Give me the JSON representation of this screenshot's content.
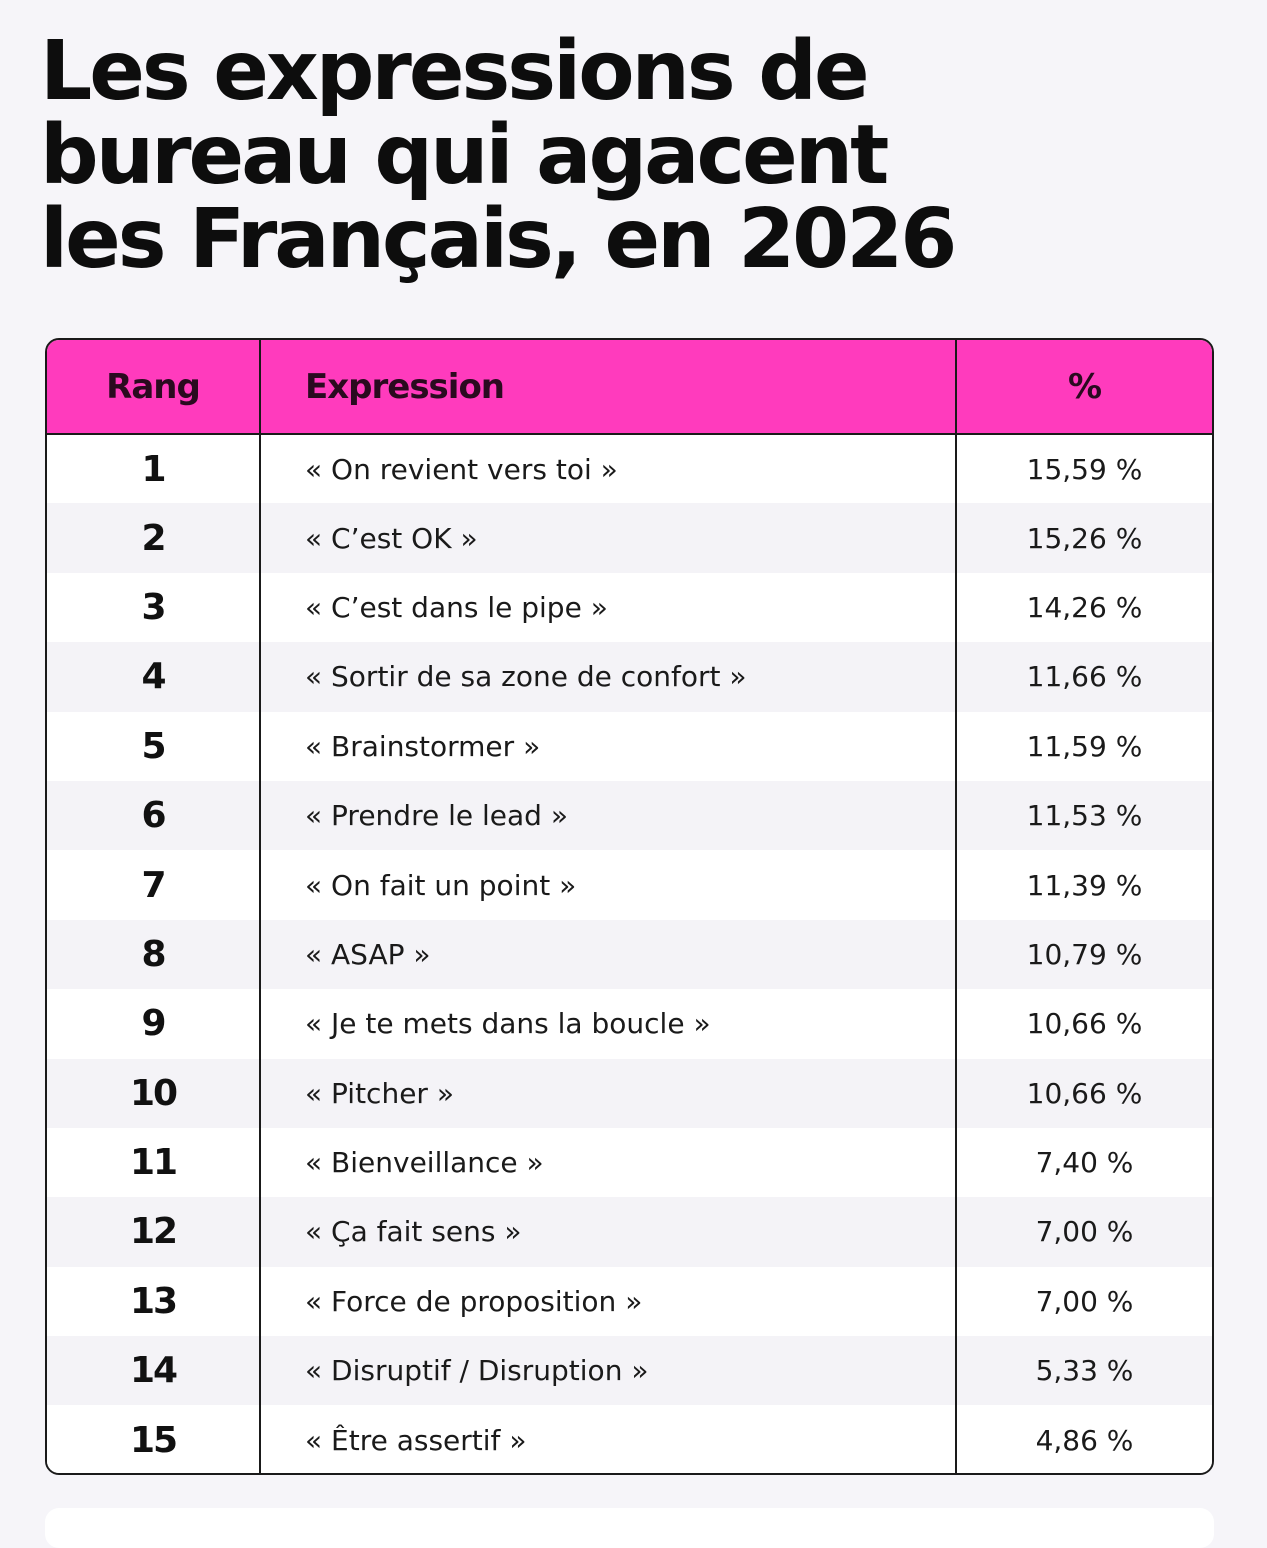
{
  "title_lines": [
    "Les expressions de",
    "bureau qui agacent",
    "les Français, en 2026"
  ],
  "header_color": "#ff3bbd",
  "table": {
    "headers": [
      "Rang",
      "Expression",
      "%"
    ],
    "rows": [
      {
        "rank": "1",
        "expression": "« On revient vers toi »",
        "percent": "15,59 %"
      },
      {
        "rank": "2",
        "expression": "« C’est OK »",
        "percent": "15,26 %"
      },
      {
        "rank": "3",
        "expression": "« C’est dans le pipe »",
        "percent": "14,26 %"
      },
      {
        "rank": "4",
        "expression": "« Sortir de sa zone de confort »",
        "percent": "11,66 %"
      },
      {
        "rank": "5",
        "expression": "« Brainstormer »",
        "percent": "11,59 %"
      },
      {
        "rank": "6",
        "expression": "« Prendre le lead »",
        "percent": "11,53 %"
      },
      {
        "rank": "7",
        "expression": "« On fait un point »",
        "percent": "11,39 %"
      },
      {
        "rank": "8",
        "expression": "« ASAP »",
        "percent": "10,79 %"
      },
      {
        "rank": "9",
        "expression": "« Je te mets dans la boucle »",
        "percent": "10,66 %"
      },
      {
        "rank": "10",
        "expression": "« Pitcher »",
        "percent": "10,66 %"
      },
      {
        "rank": "11",
        "expression": "« Bienveillance »",
        "percent": "7,40 %"
      },
      {
        "rank": "12",
        "expression": "« Ça fait sens »",
        "percent": "7,00 %"
      },
      {
        "rank": "13",
        "expression": "« Force de proposition »",
        "percent": "7,00 %"
      },
      {
        "rank": "14",
        "expression": "« Disruptif / Disruption »",
        "percent": "5,33 %"
      },
      {
        "rank": "15",
        "expression": "« Être assertif »",
        "percent": "4,86 %"
      }
    ]
  }
}
